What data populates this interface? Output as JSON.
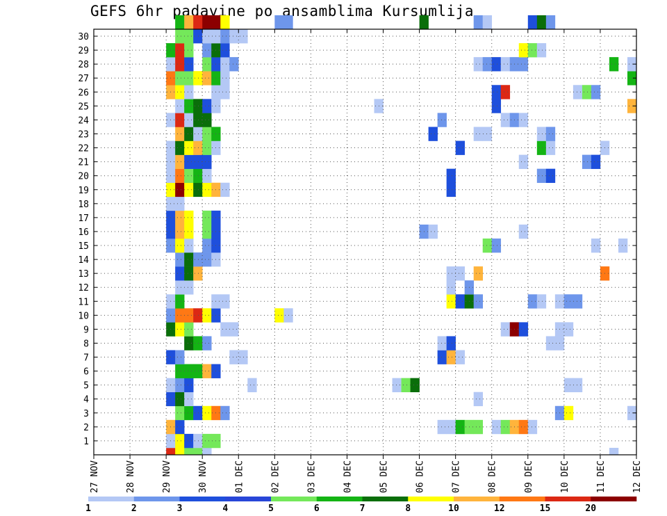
{
  "chart_data": {
    "type": "heatmap",
    "title": "GEFS 6hr padavine po ansamblima Kursumlija",
    "xlabel": "",
    "ylabel": "",
    "x_tick_labels": [
      "27 NOV",
      "28 NOV",
      "29 NOV",
      "30 NOV",
      "01 DEC",
      "02 DEC",
      "03 DEC",
      "04 DEC",
      "05 DEC",
      "06 DEC",
      "07 DEC",
      "08 DEC",
      "09 DEC",
      "10 DEC",
      "11 DEC",
      "12 DEC"
    ],
    "y_tick_labels": [
      "1",
      "2",
      "3",
      "4",
      "5",
      "6",
      "7",
      "8",
      "9",
      "10",
      "11",
      "12",
      "13",
      "14",
      "15",
      "16",
      "17",
      "18",
      "19",
      "20",
      "21",
      "22",
      "23",
      "24",
      "25",
      "26",
      "27",
      "28",
      "29",
      "30"
    ],
    "xlim": [
      "27 NOV",
      "12 DEC"
    ],
    "ylim": [
      0,
      30
    ],
    "steps_per_day": 4,
    "grid": true,
    "legend": {
      "placement": "bottom",
      "labels": [
        "1",
        "2",
        "3",
        "4",
        "5",
        "6",
        "7",
        "8",
        "10",
        "12",
        "15",
        "20"
      ],
      "colors": [
        "#b4c8f5",
        "#6e96eb",
        "#1e4fdc",
        "#2846d8",
        "#74e85a",
        "#14b414",
        "#0a6e0a",
        "#ffff00",
        "#ffb43c",
        "#ff7814",
        "#dc2814",
        "#8c0000"
      ]
    },
    "cells": [
      {
        "m": 0,
        "i": 8,
        "c": 10
      },
      {
        "m": 0,
        "i": 9,
        "c": 7
      },
      {
        "m": 0,
        "i": 10,
        "c": 4
      },
      {
        "m": 0,
        "i": 11,
        "c": 4
      },
      {
        "m": 0,
        "i": 12,
        "c": 0
      },
      {
        "m": 0,
        "i": 57,
        "c": 0
      },
      {
        "m": 1,
        "i": 8,
        "c": 0
      },
      {
        "m": 1,
        "i": 9,
        "c": 7
      },
      {
        "m": 1,
        "i": 10,
        "c": 2
      },
      {
        "m": 1,
        "i": 11,
        "c": 0
      },
      {
        "m": 1,
        "i": 12,
        "c": 4
      },
      {
        "m": 1,
        "i": 13,
        "c": 4
      },
      {
        "m": 2,
        "i": 8,
        "c": 8
      },
      {
        "m": 2,
        "i": 9,
        "c": 2
      },
      {
        "m": 2,
        "i": 38,
        "c": 0
      },
      {
        "m": 2,
        "i": 39,
        "c": 0
      },
      {
        "m": 2,
        "i": 40,
        "c": 5
      },
      {
        "m": 2,
        "i": 41,
        "c": 4
      },
      {
        "m": 2,
        "i": 42,
        "c": 4
      },
      {
        "m": 2,
        "i": 44,
        "c": 0
      },
      {
        "m": 2,
        "i": 45,
        "c": 4
      },
      {
        "m": 2,
        "i": 46,
        "c": 8
      },
      {
        "m": 2,
        "i": 47,
        "c": 9
      },
      {
        "m": 2,
        "i": 48,
        "c": 0
      },
      {
        "m": 3,
        "i": 9,
        "c": 4
      },
      {
        "m": 3,
        "i": 10,
        "c": 5
      },
      {
        "m": 3,
        "i": 11,
        "c": 2
      },
      {
        "m": 3,
        "i": 12,
        "c": 7
      },
      {
        "m": 3,
        "i": 13,
        "c": 9
      },
      {
        "m": 3,
        "i": 14,
        "c": 1
      },
      {
        "m": 3,
        "i": 51,
        "c": 1
      },
      {
        "m": 3,
        "i": 52,
        "c": 7
      },
      {
        "m": 3,
        "i": 59,
        "c": 0
      },
      {
        "m": 4,
        "i": 8,
        "c": 2
      },
      {
        "m": 4,
        "i": 9,
        "c": 6
      },
      {
        "m": 4,
        "i": 10,
        "c": 0
      },
      {
        "m": 4,
        "i": 42,
        "c": 0
      },
      {
        "m": 5,
        "i": 8,
        "c": 0
      },
      {
        "m": 5,
        "i": 9,
        "c": 1
      },
      {
        "m": 5,
        "i": 10,
        "c": 2
      },
      {
        "m": 5,
        "i": 17,
        "c": 0
      },
      {
        "m": 5,
        "i": 33,
        "c": 0
      },
      {
        "m": 5,
        "i": 34,
        "c": 4
      },
      {
        "m": 5,
        "i": 35,
        "c": 6
      },
      {
        "m": 5,
        "i": 52,
        "c": 0
      },
      {
        "m": 5,
        "i": 53,
        "c": 0
      },
      {
        "m": 6,
        "i": 9,
        "c": 5
      },
      {
        "m": 6,
        "i": 10,
        "c": 5
      },
      {
        "m": 6,
        "i": 11,
        "c": 5
      },
      {
        "m": 6,
        "i": 12,
        "c": 8
      },
      {
        "m": 6,
        "i": 13,
        "c": 2
      },
      {
        "m": 7,
        "i": 8,
        "c": 2
      },
      {
        "m": 7,
        "i": 9,
        "c": 1
      },
      {
        "m": 7,
        "i": 15,
        "c": 0
      },
      {
        "m": 7,
        "i": 16,
        "c": 0
      },
      {
        "m": 7,
        "i": 38,
        "c": 2
      },
      {
        "m": 7,
        "i": 39,
        "c": 8
      },
      {
        "m": 7,
        "i": 40,
        "c": 0
      },
      {
        "m": 8,
        "i": 10,
        "c": 6
      },
      {
        "m": 8,
        "i": 11,
        "c": 5
      },
      {
        "m": 8,
        "i": 12,
        "c": 1
      },
      {
        "m": 8,
        "i": 38,
        "c": 0
      },
      {
        "m": 8,
        "i": 39,
        "c": 2
      },
      {
        "m": 8,
        "i": 50,
        "c": 0
      },
      {
        "m": 8,
        "i": 51,
        "c": 0
      },
      {
        "m": 9,
        "i": 8,
        "c": 6
      },
      {
        "m": 9,
        "i": 9,
        "c": 7
      },
      {
        "m": 9,
        "i": 10,
        "c": 4
      },
      {
        "m": 9,
        "i": 14,
        "c": 0
      },
      {
        "m": 9,
        "i": 15,
        "c": 0
      },
      {
        "m": 9,
        "i": 45,
        "c": 0
      },
      {
        "m": 9,
        "i": 46,
        "c": 11
      },
      {
        "m": 9,
        "i": 47,
        "c": 2
      },
      {
        "m": 9,
        "i": 51,
        "c": 0
      },
      {
        "m": 9,
        "i": 52,
        "c": 0
      },
      {
        "m": 10,
        "i": 8,
        "c": 1
      },
      {
        "m": 10,
        "i": 9,
        "c": 9
      },
      {
        "m": 10,
        "i": 10,
        "c": 9
      },
      {
        "m": 10,
        "i": 11,
        "c": 10
      },
      {
        "m": 10,
        "i": 12,
        "c": 7
      },
      {
        "m": 10,
        "i": 13,
        "c": 2
      },
      {
        "m": 10,
        "i": 20,
        "c": 7
      },
      {
        "m": 10,
        "i": 21,
        "c": 0
      },
      {
        "m": 11,
        "i": 8,
        "c": 0
      },
      {
        "m": 11,
        "i": 9,
        "c": 5
      },
      {
        "m": 11,
        "i": 13,
        "c": 0
      },
      {
        "m": 11,
        "i": 14,
        "c": 0
      },
      {
        "m": 11,
        "i": 39,
        "c": 7
      },
      {
        "m": 11,
        "i": 40,
        "c": 2
      },
      {
        "m": 11,
        "i": 41,
        "c": 6
      },
      {
        "m": 11,
        "i": 42,
        "c": 1
      },
      {
        "m": 11,
        "i": 48,
        "c": 1
      },
      {
        "m": 11,
        "i": 49,
        "c": 0
      },
      {
        "m": 11,
        "i": 51,
        "c": 0
      },
      {
        "m": 11,
        "i": 52,
        "c": 1
      },
      {
        "m": 11,
        "i": 53,
        "c": 1
      },
      {
        "m": 12,
        "i": 9,
        "c": 0
      },
      {
        "m": 12,
        "i": 10,
        "c": 0
      },
      {
        "m": 12,
        "i": 39,
        "c": 0
      },
      {
        "m": 12,
        "i": 41,
        "c": 1
      },
      {
        "m": 13,
        "i": 9,
        "c": 2
      },
      {
        "m": 13,
        "i": 10,
        "c": 6
      },
      {
        "m": 13,
        "i": 11,
        "c": 8
      },
      {
        "m": 13,
        "i": 39,
        "c": 0
      },
      {
        "m": 13,
        "i": 40,
        "c": 0
      },
      {
        "m": 13,
        "i": 42,
        "c": 8
      },
      {
        "m": 13,
        "i": 56,
        "c": 9
      },
      {
        "m": 14,
        "i": 9,
        "c": 1
      },
      {
        "m": 14,
        "i": 10,
        "c": 6
      },
      {
        "m": 14,
        "i": 11,
        "c": 1
      },
      {
        "m": 14,
        "i": 12,
        "c": 1
      },
      {
        "m": 14,
        "i": 13,
        "c": 0
      },
      {
        "m": 15,
        "i": 8,
        "c": 1
      },
      {
        "m": 15,
        "i": 9,
        "c": 7
      },
      {
        "m": 15,
        "i": 10,
        "c": 0
      },
      {
        "m": 15,
        "i": 12,
        "c": 1
      },
      {
        "m": 15,
        "i": 13,
        "c": 2
      },
      {
        "m": 15,
        "i": 43,
        "c": 4
      },
      {
        "m": 15,
        "i": 44,
        "c": 1
      },
      {
        "m": 15,
        "i": 55,
        "c": 0
      },
      {
        "m": 15,
        "i": 58,
        "c": 0
      },
      {
        "m": 16,
        "i": 8,
        "c": 2
      },
      {
        "m": 16,
        "i": 9,
        "c": 8
      },
      {
        "m": 16,
        "i": 10,
        "c": 7
      },
      {
        "m": 16,
        "i": 12,
        "c": 4
      },
      {
        "m": 16,
        "i": 13,
        "c": 2
      },
      {
        "m": 16,
        "i": 36,
        "c": 1
      },
      {
        "m": 16,
        "i": 37,
        "c": 0
      },
      {
        "m": 16,
        "i": 47,
        "c": 0
      },
      {
        "m": 17,
        "i": 8,
        "c": 2
      },
      {
        "m": 17,
        "i": 9,
        "c": 8
      },
      {
        "m": 17,
        "i": 10,
        "c": 7
      },
      {
        "m": 17,
        "i": 12,
        "c": 4
      },
      {
        "m": 17,
        "i": 13,
        "c": 2
      },
      {
        "m": 18,
        "i": 8,
        "c": 0
      },
      {
        "m": 18,
        "i": 9,
        "c": 0
      },
      {
        "m": 19,
        "i": 8,
        "c": 7
      },
      {
        "m": 19,
        "i": 9,
        "c": 11
      },
      {
        "m": 19,
        "i": 10,
        "c": 7
      },
      {
        "m": 19,
        "i": 11,
        "c": 6
      },
      {
        "m": 19,
        "i": 12,
        "c": 7
      },
      {
        "m": 19,
        "i": 13,
        "c": 8
      },
      {
        "m": 19,
        "i": 14,
        "c": 0
      },
      {
        "m": 19,
        "i": 39,
        "c": 2
      },
      {
        "m": 20,
        "i": 8,
        "c": 0
      },
      {
        "m": 20,
        "i": 9,
        "c": 9
      },
      {
        "m": 20,
        "i": 10,
        "c": 4
      },
      {
        "m": 20,
        "i": 11,
        "c": 5
      },
      {
        "m": 20,
        "i": 12,
        "c": 0
      },
      {
        "m": 20,
        "i": 39,
        "c": 2
      },
      {
        "m": 20,
        "i": 49,
        "c": 1
      },
      {
        "m": 20,
        "i": 50,
        "c": 2
      },
      {
        "m": 21,
        "i": 8,
        "c": 0
      },
      {
        "m": 21,
        "i": 9,
        "c": 8
      },
      {
        "m": 21,
        "i": 10,
        "c": 2
      },
      {
        "m": 21,
        "i": 11,
        "c": 2
      },
      {
        "m": 21,
        "i": 12,
        "c": 2
      },
      {
        "m": 21,
        "i": 47,
        "c": 0
      },
      {
        "m": 21,
        "i": 54,
        "c": 1
      },
      {
        "m": 21,
        "i": 55,
        "c": 2
      },
      {
        "m": 22,
        "i": 8,
        "c": 0
      },
      {
        "m": 22,
        "i": 9,
        "c": 6
      },
      {
        "m": 22,
        "i": 10,
        "c": 7
      },
      {
        "m": 22,
        "i": 11,
        "c": 8
      },
      {
        "m": 22,
        "i": 12,
        "c": 4
      },
      {
        "m": 22,
        "i": 13,
        "c": 0
      },
      {
        "m": 22,
        "i": 40,
        "c": 2
      },
      {
        "m": 22,
        "i": 49,
        "c": 5
      },
      {
        "m": 22,
        "i": 50,
        "c": 0
      },
      {
        "m": 22,
        "i": 56,
        "c": 0
      },
      {
        "m": 23,
        "i": 9,
        "c": 8
      },
      {
        "m": 23,
        "i": 10,
        "c": 6
      },
      {
        "m": 23,
        "i": 11,
        "c": 0
      },
      {
        "m": 23,
        "i": 12,
        "c": 4
      },
      {
        "m": 23,
        "i": 13,
        "c": 5
      },
      {
        "m": 23,
        "i": 37,
        "c": 2
      },
      {
        "m": 23,
        "i": 42,
        "c": 0
      },
      {
        "m": 23,
        "i": 43,
        "c": 0
      },
      {
        "m": 23,
        "i": 49,
        "c": 0
      },
      {
        "m": 23,
        "i": 50,
        "c": 1
      },
      {
        "m": 24,
        "i": 8,
        "c": 0
      },
      {
        "m": 24,
        "i": 9,
        "c": 10
      },
      {
        "m": 24,
        "i": 10,
        "c": 0
      },
      {
        "m": 24,
        "i": 11,
        "c": 6
      },
      {
        "m": 24,
        "i": 12,
        "c": 6
      },
      {
        "m": 24,
        "i": 38,
        "c": 1
      },
      {
        "m": 24,
        "i": 45,
        "c": 0
      },
      {
        "m": 24,
        "i": 46,
        "c": 1
      },
      {
        "m": 24,
        "i": 47,
        "c": 0
      },
      {
        "m": 25,
        "i": 9,
        "c": 0
      },
      {
        "m": 25,
        "i": 10,
        "c": 5
      },
      {
        "m": 25,
        "i": 11,
        "c": 6
      },
      {
        "m": 25,
        "i": 12,
        "c": 2
      },
      {
        "m": 25,
        "i": 13,
        "c": 0
      },
      {
        "m": 25,
        "i": 31,
        "c": 0
      },
      {
        "m": 25,
        "i": 44,
        "c": 2
      },
      {
        "m": 25,
        "i": 59,
        "c": 8
      },
      {
        "m": 26,
        "i": 8,
        "c": 8
      },
      {
        "m": 26,
        "i": 9,
        "c": 7
      },
      {
        "m": 26,
        "i": 10,
        "c": 0
      },
      {
        "m": 26,
        "i": 13,
        "c": 0
      },
      {
        "m": 26,
        "i": 14,
        "c": 0
      },
      {
        "m": 26,
        "i": 44,
        "c": 2
      },
      {
        "m": 26,
        "i": 45,
        "c": 10
      },
      {
        "m": 26,
        "i": 53,
        "c": 0
      },
      {
        "m": 26,
        "i": 54,
        "c": 4
      },
      {
        "m": 26,
        "i": 55,
        "c": 1
      },
      {
        "m": 27,
        "i": 8,
        "c": 9
      },
      {
        "m": 27,
        "i": 9,
        "c": 4
      },
      {
        "m": 27,
        "i": 10,
        "c": 4
      },
      {
        "m": 27,
        "i": 11,
        "c": 7
      },
      {
        "m": 27,
        "i": 12,
        "c": 8
      },
      {
        "m": 27,
        "i": 13,
        "c": 5
      },
      {
        "m": 27,
        "i": 14,
        "c": 0
      },
      {
        "m": 27,
        "i": 59,
        "c": 5
      },
      {
        "m": 28,
        "i": 8,
        "c": 0
      },
      {
        "m": 28,
        "i": 9,
        "c": 10
      },
      {
        "m": 28,
        "i": 10,
        "c": 2
      },
      {
        "m": 28,
        "i": 12,
        "c": 4
      },
      {
        "m": 28,
        "i": 13,
        "c": 2
      },
      {
        "m": 28,
        "i": 14,
        "c": 0
      },
      {
        "m": 28,
        "i": 15,
        "c": 1
      },
      {
        "m": 28,
        "i": 42,
        "c": 0
      },
      {
        "m": 28,
        "i": 43,
        "c": 1
      },
      {
        "m": 28,
        "i": 44,
        "c": 2
      },
      {
        "m": 28,
        "i": 45,
        "c": 0
      },
      {
        "m": 28,
        "i": 46,
        "c": 1
      },
      {
        "m": 28,
        "i": 47,
        "c": 1
      },
      {
        "m": 28,
        "i": 57,
        "c": 5
      },
      {
        "m": 28,
        "i": 59,
        "c": 0
      },
      {
        "m": 29,
        "i": 8,
        "c": 5
      },
      {
        "m": 29,
        "i": 9,
        "c": 10
      },
      {
        "m": 29,
        "i": 10,
        "c": 4
      },
      {
        "m": 29,
        "i": 12,
        "c": 1
      },
      {
        "m": 29,
        "i": 13,
        "c": 6
      },
      {
        "m": 29,
        "i": 14,
        "c": 2
      },
      {
        "m": 29,
        "i": 47,
        "c": 7
      },
      {
        "m": 29,
        "i": 48,
        "c": 4
      },
      {
        "m": 29,
        "i": 49,
        "c": 0
      },
      {
        "m": 30,
        "i": 9,
        "c": 4
      },
      {
        "m": 30,
        "i": 10,
        "c": 4
      },
      {
        "m": 30,
        "i": 11,
        "c": 2
      },
      {
        "m": 30,
        "i": 12,
        "c": 0
      },
      {
        "m": 30,
        "i": 13,
        "c": 0
      },
      {
        "m": 30,
        "i": 14,
        "c": 1
      },
      {
        "m": 30,
        "i": 15,
        "c": 0
      },
      {
        "m": 30,
        "i": 16,
        "c": 0
      },
      {
        "m": 31,
        "i": 9,
        "c": 5
      },
      {
        "m": 31,
        "i": 10,
        "c": 8
      },
      {
        "m": 31,
        "i": 11,
        "c": 10
      },
      {
        "m": 31,
        "i": 12,
        "c": 11
      },
      {
        "m": 31,
        "i": 13,
        "c": 11
      },
      {
        "m": 31,
        "i": 14,
        "c": 7
      },
      {
        "m": 31,
        "i": 20,
        "c": 1
      },
      {
        "m": 31,
        "i": 21,
        "c": 1
      },
      {
        "m": 31,
        "i": 36,
        "c": 6
      },
      {
        "m": 31,
        "i": 42,
        "c": 1
      },
      {
        "m": 31,
        "i": 43,
        "c": 0
      },
      {
        "m": 31,
        "i": 48,
        "c": 2
      },
      {
        "m": 31,
        "i": 49,
        "c": 6
      },
      {
        "m": 31,
        "i": 50,
        "c": 1
      }
    ]
  }
}
